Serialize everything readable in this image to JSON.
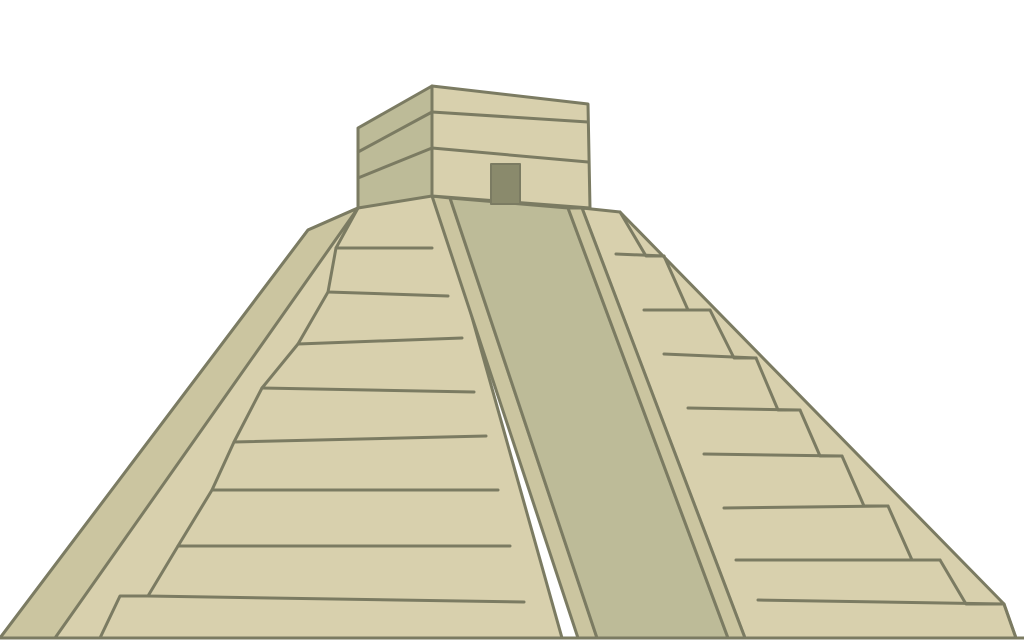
{
  "illustration": {
    "subject": "step-pyramid-icon",
    "palette": {
      "background": "#ffffff",
      "outline": "#7b7b62",
      "stone_light": "#d8d0ad",
      "stone_mid": "#cbc5a0",
      "stone_shadow": "#bdbb98",
      "doorway": "#8a8a6c"
    },
    "tiers": {
      "left_face_steps": 9,
      "right_face_steps": 8
    }
  }
}
